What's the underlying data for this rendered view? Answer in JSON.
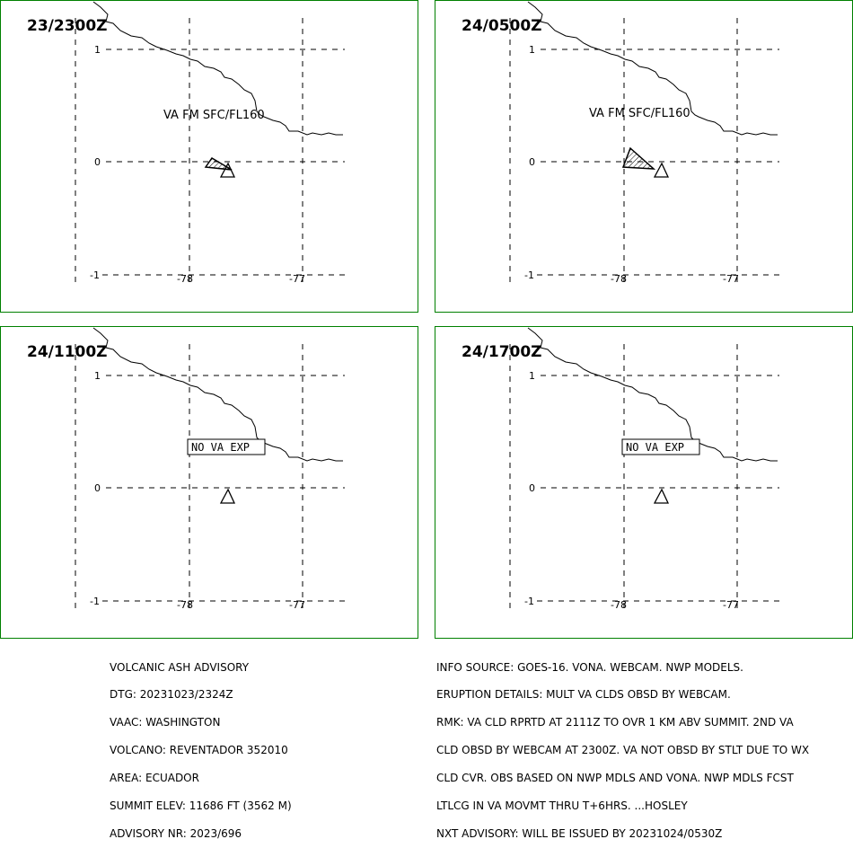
{
  "panels": [
    {
      "time": "23/2300Z",
      "label": "VA FM SFC/FL160",
      "shape": "small"
    },
    {
      "time": "24/0500Z",
      "label": "VA FM SFC/FL160",
      "shape": "large"
    },
    {
      "time": "24/1100Z",
      "label": "NO  VA  EXP",
      "shape": "none"
    },
    {
      "time": "24/1700Z",
      "label": "NO  VA  EXP",
      "shape": "none"
    }
  ],
  "ticks": {
    "lat": [
      "1",
      "0",
      "-1"
    ],
    "lon": [
      "-78",
      "-77"
    ]
  },
  "advisory_left": [
    "VOLCANIC ASH ADVISORY",
    "DTG: 20231023/2324Z",
    "VAAC: WASHINGTON",
    "VOLCANO: REVENTADOR 352010",
    "AREA: ECUADOR",
    "SUMMIT ELEV: 11686 FT (3562 M)",
    "ADVISORY NR: 2023/696"
  ],
  "advisory_right": [
    "INFO SOURCE: GOES-16. VONA. WEBCAM. NWP MODELS.",
    "ERUPTION DETAILS: MULT VA CLDS OBSD BY WEBCAM.",
    "RMK: VA CLD RPRTD AT 2111Z TO OVR 1 KM ABV SUMMIT. 2ND VA",
    "CLD OBSD BY WEBCAM AT 2300Z. VA NOT OBSD BY STLT DUE TO WX",
    "CLD CVR. OBS BASED ON NWP MDLS AND VONA. NWP MDLS FCST",
    "LTLCG IN VA MOVMT THRU T+6HRS. ...HOSLEY",
    "NXT ADVISORY: WILL BE ISSUED BY 20231024/0530Z"
  ],
  "colors": {
    "frame": "#008000",
    "ink": "#000000"
  }
}
